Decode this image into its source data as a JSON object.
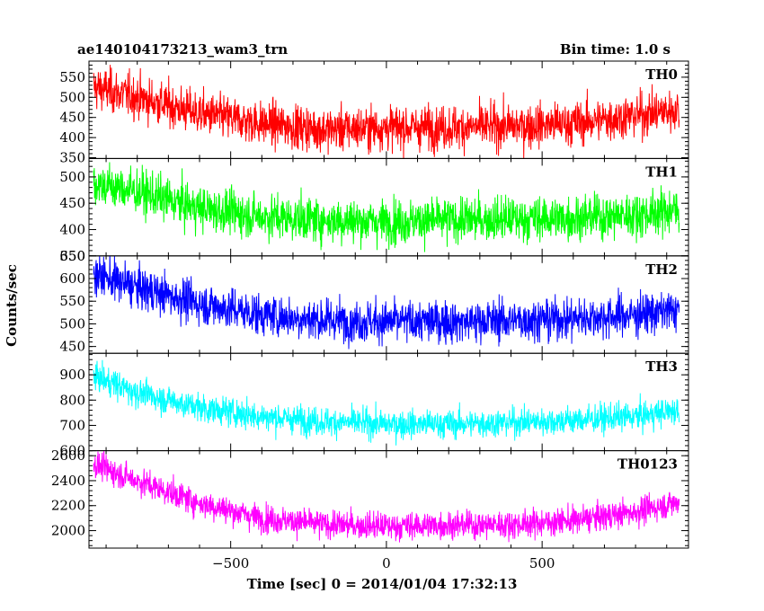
{
  "header": {
    "title": "ae140104173213_wam3_trn",
    "bin_time": "Bin time: 1.0 s"
  },
  "chart_data": {
    "type": "line",
    "title": "ae140104173213_wam3_trn",
    "xlabel": "Time [sec] 0 = 2014/01/04 17:32:13",
    "ylabel": "Counts/sec",
    "xlim": [
      -955,
      970
    ],
    "x_ticks": [
      -500,
      0,
      500
    ],
    "x_tick_labels": [
      "−500",
      "0",
      "500"
    ],
    "grid": false,
    "bin_time_s": 1.0,
    "x_span": [
      -940,
      940
    ],
    "panels": [
      {
        "name": "TH0",
        "color": "#ff0000",
        "ylim": [
          348,
          590
        ],
        "y_ticks": [
          350,
          400,
          450,
          500,
          550
        ],
        "trend": {
          "x": [
            -940,
            -800,
            -600,
            -400,
            -200,
            0,
            200,
            400,
            600,
            800,
            940
          ],
          "y": [
            525,
            500,
            460,
            435,
            420,
            425,
            425,
            428,
            435,
            455,
            470
          ]
        },
        "noise_sd": 27
      },
      {
        "name": "TH1",
        "color": "#00ff00",
        "ylim": [
          350,
          535
        ],
        "y_ticks": [
          350,
          400,
          450,
          500
        ],
        "trend": {
          "x": [
            -940,
            -800,
            -600,
            -400,
            -200,
            0,
            200,
            400,
            600,
            800,
            940
          ],
          "y": [
            488,
            472,
            440,
            425,
            418,
            415,
            418,
            420,
            422,
            428,
            438
          ]
        },
        "noise_sd": 21
      },
      {
        "name": "TH2",
        "color": "#0000ff",
        "ylim": [
          435,
          650
        ],
        "y_ticks": [
          450,
          500,
          550,
          600,
          650
        ],
        "trend": {
          "x": [
            -940,
            -800,
            -600,
            -400,
            -200,
            0,
            200,
            400,
            600,
            800,
            940
          ],
          "y": [
            610,
            580,
            545,
            520,
            508,
            505,
            505,
            508,
            512,
            520,
            530
          ]
        },
        "noise_sd": 23
      },
      {
        "name": "TH3",
        "color": "#00ffff",
        "ylim": [
          600,
          985
        ],
        "y_ticks": [
          600,
          700,
          800,
          900
        ],
        "trend": {
          "x": [
            -940,
            -800,
            -600,
            -400,
            -200,
            0,
            200,
            400,
            600,
            800,
            940
          ],
          "y": [
            895,
            830,
            770,
            735,
            715,
            705,
            705,
            712,
            720,
            735,
            760
          ]
        },
        "noise_sd": 28
      },
      {
        "name": "TH0123",
        "color": "#ff00ff",
        "ylim": [
          1860,
          2640
        ],
        "y_ticks": [
          2000,
          2200,
          2400,
          2600
        ],
        "trend": {
          "x": [
            -940,
            -800,
            -600,
            -400,
            -200,
            0,
            200,
            400,
            600,
            800,
            940
          ],
          "y": [
            2530,
            2400,
            2220,
            2100,
            2050,
            2035,
            2045,
            2050,
            2080,
            2150,
            2230
          ]
        },
        "noise_sd": 55
      }
    ]
  }
}
